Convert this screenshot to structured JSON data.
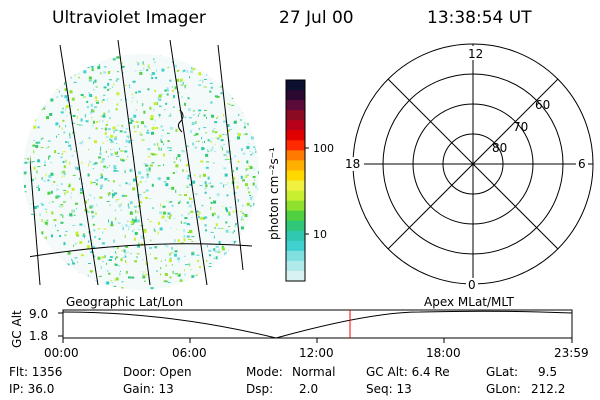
{
  "header": {
    "instrument": "Ultraviolet Imager",
    "date": "27 Jul 00",
    "time": "13:38:54 UT"
  },
  "colorbar": {
    "label": "photon cm⁻²s⁻¹",
    "ticks": [
      "100",
      "10"
    ],
    "colors": [
      "#0b1030",
      "#2a0830",
      "#5b0a3a",
      "#8a0b22",
      "#b8001a",
      "#e00000",
      "#ff2a00",
      "#ff7a00",
      "#ffb000",
      "#ffd800",
      "#f0f040",
      "#c8f030",
      "#90e030",
      "#50d040",
      "#30c878",
      "#30c8b0",
      "#40d0d0",
      "#80e0e0",
      "#b0eaea",
      "#d8f2f2"
    ]
  },
  "polar_plot": {
    "mlt_labels": [
      "12",
      "18",
      "6",
      "0"
    ],
    "lat_labels": [
      "60",
      "70",
      "80"
    ]
  },
  "timeline": {
    "left_label": "Geographic Lat/Lon",
    "right_label": "Apex MLat/MLT",
    "y_axis_label": "GC Alt",
    "y_ticks": [
      "9.0",
      "1.8"
    ],
    "x_ticks": [
      "00:00",
      "06:00",
      "12:00",
      "18:00",
      "23:59"
    ],
    "marker_time": "13:38:54",
    "marker_color": "#ff0000"
  },
  "info": {
    "flt": "Flt: 1356",
    "ip": "IP: 36.0",
    "door": "Door: Open",
    "gain": "Gain: 13",
    "mode_label": "Mode:",
    "mode_value": "Normal",
    "dsp_label": "Dsp:",
    "dsp_value": "2.0",
    "gc_alt": "GC Alt: 6.4 Re",
    "seq": "Seq: 13",
    "glat_label": "GLat:",
    "glat_value": "9.5",
    "glon_label": "GLon:",
    "glon_value": "212.2"
  }
}
